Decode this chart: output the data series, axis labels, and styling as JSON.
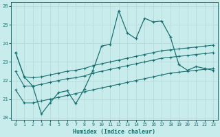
{
  "xlabel": "Humidex (Indice chaleur)",
  "background_color": "#c8ecec",
  "grid_color": "#b8dada",
  "line_color": "#1a7070",
  "xlim": [
    -0.5,
    23.5
  ],
  "ylim": [
    19.9,
    26.2
  ],
  "yticks": [
    20,
    21,
    22,
    23,
    24,
    25,
    26
  ],
  "xticks": [
    0,
    1,
    2,
    3,
    4,
    5,
    6,
    7,
    8,
    9,
    10,
    11,
    12,
    13,
    14,
    15,
    16,
    17,
    18,
    19,
    20,
    21,
    22,
    23
  ],
  "line_upper_x": [
    0,
    1,
    2,
    3,
    4,
    5,
    6,
    7,
    8,
    9,
    10,
    11,
    12,
    13,
    14,
    15,
    16,
    17,
    18,
    19,
    20,
    21,
    22,
    23
  ],
  "line_upper_y": [
    23.5,
    22.2,
    22.15,
    22.2,
    22.3,
    22.4,
    22.5,
    22.55,
    22.65,
    22.8,
    22.9,
    23.0,
    23.1,
    23.2,
    23.3,
    23.4,
    23.5,
    23.6,
    23.65,
    23.7,
    23.75,
    23.8,
    23.85,
    23.9
  ],
  "line_lower_x": [
    0,
    1,
    2,
    3,
    4,
    5,
    6,
    7,
    8,
    9,
    10,
    11,
    12,
    13,
    14,
    15,
    16,
    17,
    18,
    19,
    20,
    21,
    22,
    23
  ],
  "line_lower_y": [
    21.5,
    20.8,
    20.8,
    20.9,
    21.0,
    21.1,
    21.2,
    21.3,
    21.4,
    21.5,
    21.6,
    21.7,
    21.8,
    21.9,
    22.0,
    22.1,
    22.2,
    22.3,
    22.4,
    22.45,
    22.5,
    22.55,
    22.6,
    22.65
  ],
  "line_mid_x": [
    0,
    1,
    2,
    3,
    4,
    5,
    6,
    7,
    8,
    9,
    10,
    11,
    12,
    13,
    14,
    15,
    16,
    17,
    18,
    19,
    20,
    21,
    22,
    23
  ],
  "line_mid_y": [
    22.5,
    21.7,
    21.7,
    21.8,
    21.9,
    22.0,
    22.1,
    22.15,
    22.25,
    22.4,
    22.5,
    22.6,
    22.7,
    22.8,
    22.9,
    23.0,
    23.1,
    23.2,
    23.25,
    23.3,
    23.35,
    23.4,
    23.45,
    23.5
  ],
  "line_data_x": [
    0,
    1,
    2,
    3,
    4,
    5,
    6,
    7,
    8,
    9,
    10,
    11,
    12,
    13,
    14,
    15,
    16,
    17,
    18,
    19,
    20,
    21,
    22,
    23
  ],
  "line_data_y": [
    23.5,
    22.2,
    21.7,
    20.2,
    20.8,
    21.35,
    21.45,
    20.75,
    21.55,
    22.55,
    23.85,
    23.95,
    25.75,
    24.55,
    24.25,
    25.35,
    25.15,
    25.2,
    24.35,
    22.85,
    22.55,
    22.75,
    22.65,
    22.55
  ]
}
